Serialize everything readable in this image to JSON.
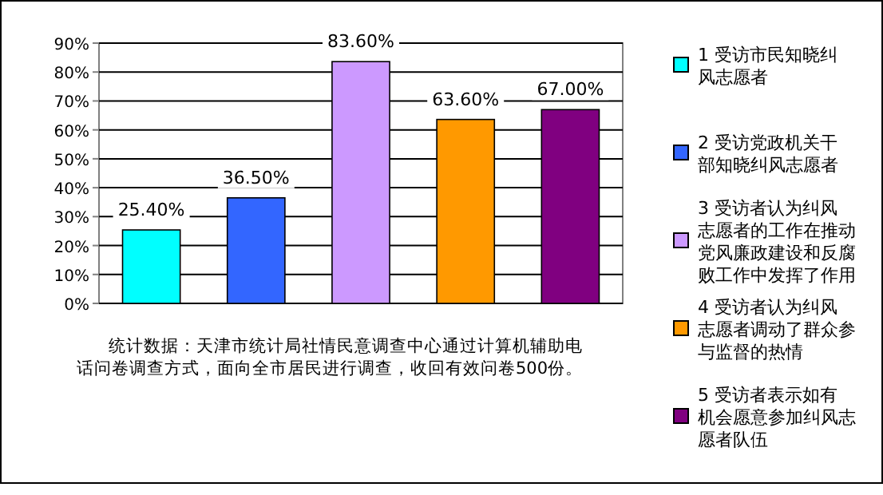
{
  "chart_data": {
    "type": "bar",
    "categories": [
      null,
      null,
      null,
      null,
      null
    ],
    "series": [
      {
        "name": "1 受访市民知晓纠风志愿者",
        "color": "#00ffff",
        "values": [
          25.4,
          null,
          null,
          null,
          null
        ],
        "value_labels": [
          "25.40%",
          null,
          null,
          null,
          null
        ]
      },
      {
        "name": "2 受访党政机关干部知晓纠风志愿者",
        "color": "#3366ff",
        "values": [
          null,
          36.5,
          null,
          null,
          null
        ],
        "value_labels": [
          null,
          "36.50%",
          null,
          null,
          null
        ]
      },
      {
        "name": "3 受访者认为纠风志愿者的工作在推动党风廉政建设和反腐败工作中发挥了作用",
        "color": "#cc99ff",
        "values": [
          null,
          null,
          83.6,
          null,
          null
        ],
        "value_labels": [
          null,
          null,
          "83.60%",
          null,
          null
        ]
      },
      {
        "name": "4 受访者认为纠风志愿者调动了群众参与监督的热情",
        "color": "#ff9900",
        "values": [
          null,
          null,
          null,
          63.6,
          null
        ],
        "value_labels": [
          null,
          null,
          null,
          "63.60%",
          null
        ]
      },
      {
        "name": "5 受访者表示如有机会愿意参加纠风志愿者队伍",
        "color": "#800080",
        "values": [
          null,
          null,
          null,
          null,
          67.0
        ],
        "value_labels": [
          null,
          null,
          null,
          null,
          "67.00%"
        ]
      }
    ],
    "ylim": [
      0,
      90
    ],
    "yticks": [
      {
        "value": 0,
        "label": "0%"
      },
      {
        "value": 10,
        "label": "10%"
      },
      {
        "value": 20,
        "label": "20%"
      },
      {
        "value": 30,
        "label": "30%"
      },
      {
        "value": 40,
        "label": "40%"
      },
      {
        "value": 50,
        "label": "50%"
      },
      {
        "value": 60,
        "label": "60%"
      },
      {
        "value": 70,
        "label": "70%"
      },
      {
        "value": 80,
        "label": "80%"
      },
      {
        "value": 90,
        "label": "90%"
      }
    ],
    "grid": "y",
    "legend": "right",
    "annotations": [
      "统计数据：天津市统计局社情民意调查中心通过计算机辅助电话问卷调查方式，面向全市居民进行调查，收回有效问卷500份。"
    ]
  }
}
